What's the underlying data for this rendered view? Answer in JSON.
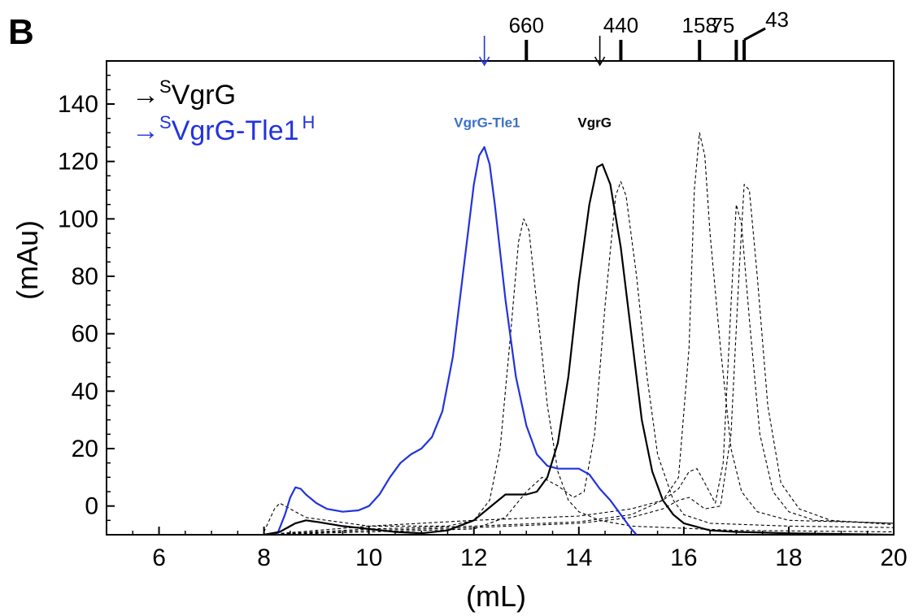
{
  "panel_label": "B",
  "chart_data": {
    "type": "line",
    "xlabel": "(mL)",
    "ylabel": "(mAu)",
    "xlim": [
      5,
      20
    ],
    "ylim": [
      -10,
      155
    ],
    "xticks": [
      6,
      8,
      10,
      12,
      14,
      16,
      18,
      20
    ],
    "yticks": [
      0,
      20,
      40,
      60,
      80,
      100,
      120,
      140
    ],
    "colors": {
      "vgrg": "#000000",
      "vgrg_tle1": "#2233dd",
      "standards": "#000000",
      "peak_label_blue": "#3b6fc9"
    },
    "legend": [
      {
        "prefix": "→",
        "sup": "S",
        "text": "VgrG",
        "sup2": "",
        "color": "#000000"
      },
      {
        "prefix": "→",
        "sup": "S",
        "text": "VgrG-Tle1",
        "sup2": "H",
        "color": "#2233dd"
      }
    ],
    "peak_labels": [
      {
        "text": "VgrG-Tle1",
        "x": 12.25,
        "y": 133,
        "color": "#3b6fc9"
      },
      {
        "text": "VgrG",
        "x": 14.3,
        "y": 133,
        "color": "#000000"
      }
    ],
    "standards_markers": [
      {
        "label": "660",
        "x": 13.0
      },
      {
        "label": "440",
        "x": 14.8
      },
      {
        "label": "158",
        "x": 16.3
      },
      {
        "label": "75",
        "x": 17.0
      },
      {
        "label": "43",
        "x": 17.15
      }
    ],
    "elution_arrows": [
      {
        "x": 12.2,
        "color": "#2233dd"
      },
      {
        "x": 14.4,
        "color": "#000000"
      }
    ],
    "series": [
      {
        "name": "VgrG-Tle1",
        "style": "solid",
        "color": "#2233dd",
        "points": [
          [
            8.25,
            -10
          ],
          [
            8.4,
            -3
          ],
          [
            8.5,
            3
          ],
          [
            8.6,
            6.5
          ],
          [
            8.7,
            6
          ],
          [
            8.8,
            4
          ],
          [
            9.0,
            1
          ],
          [
            9.2,
            -1
          ],
          [
            9.5,
            -2
          ],
          [
            9.8,
            -1.5
          ],
          [
            10.0,
            0
          ],
          [
            10.2,
            4
          ],
          [
            10.4,
            10
          ],
          [
            10.6,
            15
          ],
          [
            10.8,
            18
          ],
          [
            11.0,
            20
          ],
          [
            11.2,
            24
          ],
          [
            11.4,
            33
          ],
          [
            11.6,
            52
          ],
          [
            11.8,
            82
          ],
          [
            12.0,
            112
          ],
          [
            12.1,
            122
          ],
          [
            12.2,
            125
          ],
          [
            12.3,
            119
          ],
          [
            12.4,
            105
          ],
          [
            12.6,
            72
          ],
          [
            12.8,
            45
          ],
          [
            13.0,
            28
          ],
          [
            13.2,
            18
          ],
          [
            13.4,
            14
          ],
          [
            13.6,
            13
          ],
          [
            13.8,
            13
          ],
          [
            14.0,
            13
          ],
          [
            14.2,
            11
          ],
          [
            14.4,
            6
          ],
          [
            14.6,
            2
          ],
          [
            14.8,
            -3
          ],
          [
            15.0,
            -8
          ],
          [
            15.1,
            -10
          ]
        ]
      },
      {
        "name": "VgrG",
        "style": "solid",
        "color": "#000000",
        "points": [
          [
            8.0,
            -10
          ],
          [
            8.3,
            -9
          ],
          [
            8.6,
            -6
          ],
          [
            8.8,
            -5
          ],
          [
            9.0,
            -5.5
          ],
          [
            9.5,
            -7
          ],
          [
            10.0,
            -8
          ],
          [
            10.5,
            -9
          ],
          [
            11.0,
            -9.5
          ],
          [
            11.5,
            -8.5
          ],
          [
            12.0,
            -5
          ],
          [
            12.4,
            1
          ],
          [
            12.6,
            4
          ],
          [
            12.8,
            4
          ],
          [
            13.0,
            4
          ],
          [
            13.2,
            5
          ],
          [
            13.4,
            10
          ],
          [
            13.6,
            22
          ],
          [
            13.8,
            45
          ],
          [
            14.0,
            78
          ],
          [
            14.2,
            105
          ],
          [
            14.35,
            118
          ],
          [
            14.45,
            119
          ],
          [
            14.6,
            112
          ],
          [
            14.8,
            90
          ],
          [
            15.0,
            60
          ],
          [
            15.2,
            30
          ],
          [
            15.4,
            12
          ],
          [
            15.6,
            2
          ],
          [
            15.8,
            -3
          ],
          [
            16.0,
            -6
          ],
          [
            16.5,
            -8.5
          ],
          [
            17.0,
            -9
          ],
          [
            18.0,
            -9.5
          ],
          [
            20.0,
            -10
          ]
        ]
      },
      {
        "name": "std-660",
        "style": "dashed",
        "color": "#000000",
        "points": [
          [
            8.0,
            -9
          ],
          [
            8.2,
            -1
          ],
          [
            8.3,
            1
          ],
          [
            8.5,
            -1
          ],
          [
            8.8,
            -4
          ],
          [
            10.0,
            -7
          ],
          [
            11.5,
            -7
          ],
          [
            12.0,
            -5
          ],
          [
            12.3,
            2
          ],
          [
            12.5,
            20
          ],
          [
            12.7,
            60
          ],
          [
            12.85,
            92
          ],
          [
            12.95,
            100
          ],
          [
            13.05,
            96
          ],
          [
            13.2,
            70
          ],
          [
            13.4,
            35
          ],
          [
            13.6,
            12
          ],
          [
            13.8,
            2
          ],
          [
            14.0,
            -2
          ],
          [
            14.4,
            -5
          ],
          [
            15.0,
            -7
          ],
          [
            17.0,
            -8.5
          ],
          [
            20.0,
            -9
          ]
        ]
      },
      {
        "name": "std-440",
        "style": "dashed",
        "color": "#000000",
        "points": [
          [
            8.0,
            -10
          ],
          [
            10.0,
            -9
          ],
          [
            12.0,
            -8
          ],
          [
            12.6,
            -4
          ],
          [
            13.0,
            5
          ],
          [
            13.3,
            10
          ],
          [
            13.6,
            7
          ],
          [
            13.9,
            3
          ],
          [
            14.1,
            5
          ],
          [
            14.3,
            25
          ],
          [
            14.5,
            70
          ],
          [
            14.7,
            108
          ],
          [
            14.8,
            113
          ],
          [
            14.9,
            108
          ],
          [
            15.1,
            80
          ],
          [
            15.3,
            45
          ],
          [
            15.5,
            18
          ],
          [
            15.8,
            2
          ],
          [
            16.0,
            -3
          ],
          [
            16.5,
            -6
          ],
          [
            18.0,
            -7
          ],
          [
            20.0,
            -7.5
          ]
        ]
      },
      {
        "name": "std-158",
        "style": "dashed",
        "color": "#000000",
        "points": [
          [
            8.0,
            -10
          ],
          [
            10.0,
            -7
          ],
          [
            12.0,
            -5
          ],
          [
            14.0,
            -3.5
          ],
          [
            15.0,
            -1
          ],
          [
            15.6,
            2
          ],
          [
            15.9,
            10
          ],
          [
            16.1,
            55
          ],
          [
            16.2,
            110
          ],
          [
            16.3,
            130
          ],
          [
            16.4,
            122
          ],
          [
            16.5,
            95
          ],
          [
            16.7,
            55
          ],
          [
            16.9,
            20
          ],
          [
            17.1,
            5
          ],
          [
            17.4,
            -2
          ],
          [
            18.0,
            -5
          ],
          [
            20.0,
            -6
          ]
        ]
      },
      {
        "name": "std-75",
        "style": "dashed",
        "color": "#000000",
        "points": [
          [
            8.0,
            -10
          ],
          [
            10.0,
            -8
          ],
          [
            12.0,
            -7
          ],
          [
            14.0,
            -5.5
          ],
          [
            15.0,
            -3
          ],
          [
            15.6,
            2
          ],
          [
            15.9,
            6
          ],
          [
            16.1,
            12
          ],
          [
            16.25,
            13
          ],
          [
            16.4,
            8
          ],
          [
            16.6,
            1
          ],
          [
            16.75,
            15
          ],
          [
            16.9,
            70
          ],
          [
            17.0,
            105
          ],
          [
            17.1,
            98
          ],
          [
            17.25,
            65
          ],
          [
            17.45,
            25
          ],
          [
            17.7,
            5
          ],
          [
            18.0,
            -2
          ],
          [
            18.5,
            -5
          ],
          [
            20.0,
            -6
          ]
        ]
      },
      {
        "name": "std-43",
        "style": "dashed",
        "color": "#000000",
        "points": [
          [
            8.0,
            -10
          ],
          [
            10.0,
            -8.5
          ],
          [
            12.0,
            -7.5
          ],
          [
            14.0,
            -6
          ],
          [
            15.0,
            -4
          ],
          [
            15.6,
            -1
          ],
          [
            15.9,
            2
          ],
          [
            16.1,
            3
          ],
          [
            16.4,
            -1
          ],
          [
            16.7,
            0
          ],
          [
            16.9,
            25
          ],
          [
            17.05,
            80
          ],
          [
            17.15,
            112
          ],
          [
            17.25,
            110
          ],
          [
            17.4,
            80
          ],
          [
            17.6,
            35
          ],
          [
            17.85,
            8
          ],
          [
            18.2,
            -1
          ],
          [
            18.8,
            -5
          ],
          [
            20.0,
            -6.5
          ]
        ]
      }
    ]
  }
}
